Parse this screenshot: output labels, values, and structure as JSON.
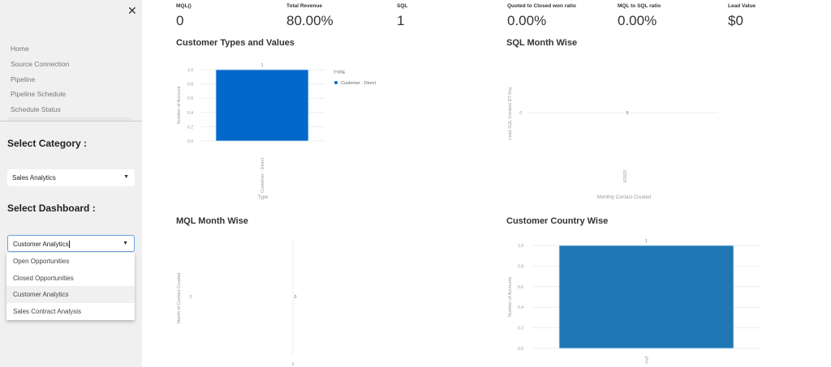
{
  "sidebar": {
    "close_icon": "close-icon",
    "nav": [
      "Home",
      "Source Connection",
      "Pipeline",
      "Pipeline Schedule",
      "Schedule Status"
    ],
    "category_label": "Select Category :",
    "category_value": "Sales Analytics",
    "dashboard_label": "Select Dashboard :",
    "dashboard_value": "Customer Analytics",
    "dashboard_options": [
      "Open Opportunities",
      "Closed Opportunities",
      "Customer Analytics",
      "Sales Contract Analysis"
    ]
  },
  "kpis": [
    {
      "label": "MQL()",
      "value": "0"
    },
    {
      "label": "Total Revenue",
      "value": "80.00%"
    },
    {
      "label": "SQL",
      "value": "1"
    },
    {
      "label": "Quoted to Closed won ratio",
      "value": "0.00%"
    },
    {
      "label": "MQL to SQL ratio",
      "value": "0.00%"
    },
    {
      "label": "Lead Value",
      "value": "$0"
    }
  ],
  "chart_data": [
    {
      "type": "bar",
      "title": "Customer Types and Values",
      "categories": [
        "Customer - Direct"
      ],
      "values": [
        1
      ],
      "data_labels": [
        "1"
      ],
      "xlabel": "Type",
      "ylabel": "Number of Account",
      "ylim": [
        0,
        1
      ],
      "yticks": [
        "0.0",
        "0.2",
        "0.4",
        "0.6",
        "0.8",
        "1.0"
      ],
      "legend_title": "TYPE",
      "legend": [
        "Customer - Direct"
      ],
      "legend_placement": "right",
      "color": "#0068c9"
    },
    {
      "type": "line",
      "title": "SQL Month Wise",
      "categories": [
        "6/2023"
      ],
      "values": [
        0
      ],
      "data_labels": [
        "0"
      ],
      "xlabel": "Monthly Contact Created",
      "ylabel": "Lead SQL Created DT Key",
      "yticks": [
        "0"
      ]
    },
    {
      "type": "bar",
      "title": "MQL Month Wise",
      "categories": [
        "0"
      ],
      "values": [
        0
      ],
      "data_labels": [
        "0"
      ],
      "ylabel": "Month of Contact Created",
      "yticks": [
        "0"
      ]
    },
    {
      "type": "bar",
      "title": "Customer Country Wise",
      "categories": [
        "null"
      ],
      "values": [
        1
      ],
      "data_labels": [
        "1"
      ],
      "ylabel": "Number of Accounts",
      "ylim": [
        0,
        1
      ],
      "yticks": [
        "0.0",
        "0.2",
        "0.4",
        "0.6",
        "0.8",
        "1.0"
      ],
      "color": "#1f77b4"
    }
  ]
}
